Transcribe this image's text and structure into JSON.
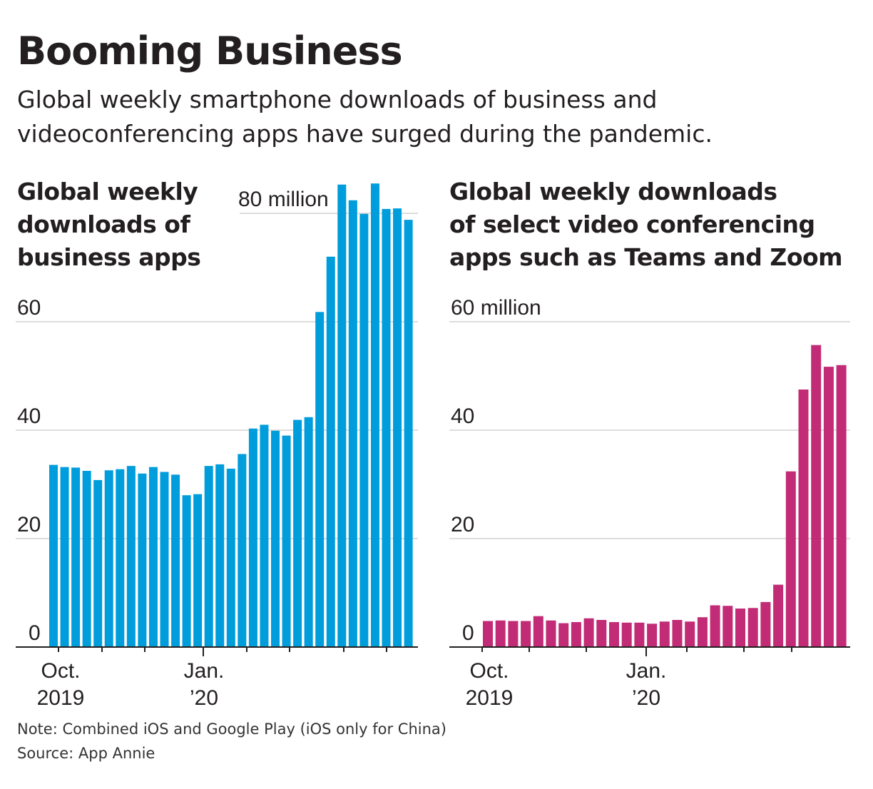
{
  "title": "Booming Business",
  "subtitle": "Global weekly smartphone downloads of business and videoconferencing apps have surged during the pandemic.",
  "note": "Note: Combined iOS and Google Play (iOS only for China)",
  "source": "Source: App Annie",
  "colors": {
    "business": "#009ddc",
    "video": "#c22b76",
    "grid": "#dddddd",
    "axis": "#231f20"
  },
  "chart_data": [
    {
      "type": "bar",
      "title": "Global weekly downloads of business apps",
      "unit": "million",
      "ylim": [
        0,
        80
      ],
      "yticks": [
        0,
        20,
        40,
        60,
        80
      ],
      "ytick_labels": [
        "0",
        "20",
        "40",
        "60",
        "80 million"
      ],
      "xtick_labels": [
        [
          "Oct.",
          "2019"
        ],
        [
          "Jan.",
          "’20"
        ]
      ],
      "grid": true,
      "values": [
        33.6,
        33.2,
        33.1,
        32.5,
        30.8,
        32.6,
        32.8,
        33.4,
        32.0,
        33.2,
        32.3,
        31.8,
        28.0,
        28.2,
        33.4,
        33.7,
        32.9,
        35.6,
        40.3,
        41.0,
        39.9,
        39.0,
        41.9,
        42.4,
        61.8,
        72.0,
        85.3,
        82.4,
        79.9,
        85.5,
        80.8,
        80.9,
        78.8
      ]
    },
    {
      "type": "bar",
      "title": "Global weekly downloads of select video conferencing apps such as Teams and Zoom",
      "unit": "million",
      "ylim": [
        0,
        60
      ],
      "yticks": [
        0,
        20,
        40,
        60
      ],
      "ytick_labels": [
        "0",
        "20",
        "40",
        "60 million"
      ],
      "xtick_labels": [
        [
          "Oct.",
          "2019"
        ],
        [
          "Jan.",
          "’20"
        ]
      ],
      "grid": true,
      "values": [
        4.8,
        4.9,
        4.8,
        4.8,
        5.7,
        4.9,
        4.4,
        4.6,
        5.3,
        5.0,
        4.6,
        4.5,
        4.5,
        4.3,
        4.7,
        5.0,
        4.7,
        5.5,
        7.7,
        7.6,
        7.1,
        7.2,
        8.3,
        11.5,
        32.4,
        47.5,
        55.7,
        51.7,
        52.0
      ]
    }
  ],
  "panels": [
    {
      "title_lines": [
        "Global weekly",
        "downloads of",
        "business apps"
      ]
    },
    {
      "title_lines": [
        "Global weekly downloads",
        "of select video conferencing",
        "apps such as Teams and Zoom"
      ]
    }
  ]
}
